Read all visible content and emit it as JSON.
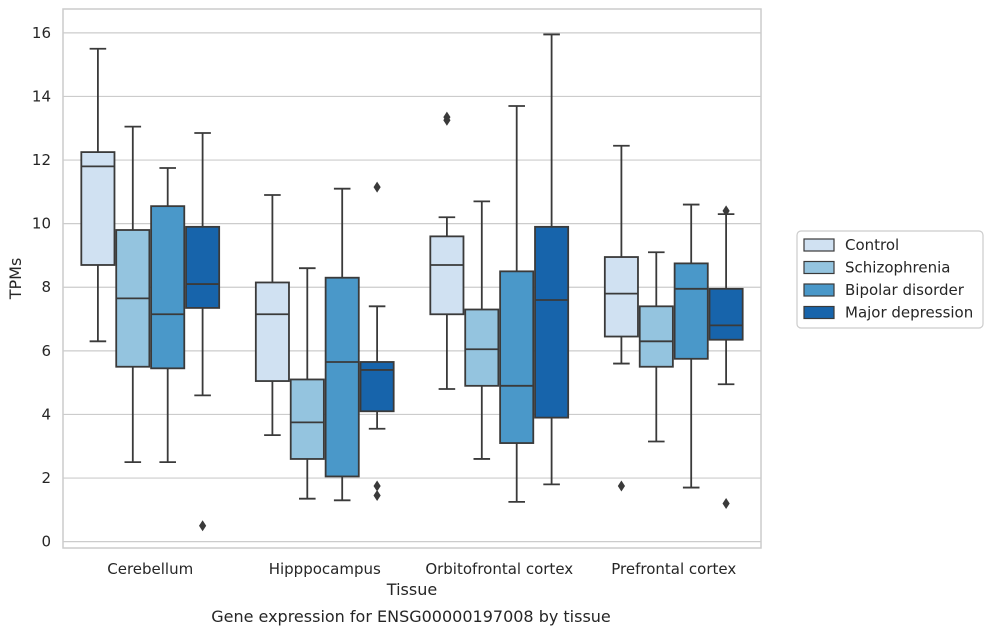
{
  "chart_data": {
    "type": "box",
    "title": "",
    "caption": "Gene expression for ENSG00000197008 by tissue",
    "xlabel": "Tissue",
    "ylabel": "TPMs",
    "ylim": [
      -0.2,
      16.75
    ],
    "yticks": [
      0,
      2,
      4,
      6,
      8,
      10,
      12,
      14,
      16
    ],
    "grid": "horizontal",
    "legend_position": "right",
    "categories": [
      "Cerebellum",
      "Hipppocampus",
      "Orbitofrontal cortex",
      "Prefrontal cortex"
    ],
    "series": [
      {
        "name": "Control",
        "color": "#d0e1f2",
        "boxes": [
          {
            "whisker_low": 6.3,
            "q1": 8.7,
            "median": 11.8,
            "q3": 12.25,
            "whisker_high": 15.5,
            "outliers": []
          },
          {
            "whisker_low": 3.35,
            "q1": 5.05,
            "median": 7.15,
            "q3": 8.15,
            "whisker_high": 10.9,
            "outliers": []
          },
          {
            "whisker_low": 4.8,
            "q1": 7.15,
            "median": 8.7,
            "q3": 9.6,
            "whisker_high": 10.2,
            "outliers": [
              13.25,
              13.35
            ]
          },
          {
            "whisker_low": 5.6,
            "q1": 6.45,
            "median": 7.8,
            "q3": 8.95,
            "whisker_high": 12.45,
            "outliers": [
              1.75
            ]
          }
        ]
      },
      {
        "name": "Schizophrenia",
        "color": "#94c4df",
        "boxes": [
          {
            "whisker_low": 2.5,
            "q1": 5.5,
            "median": 7.65,
            "q3": 9.8,
            "whisker_high": 13.05,
            "outliers": []
          },
          {
            "whisker_low": 1.35,
            "q1": 2.6,
            "median": 3.75,
            "q3": 5.1,
            "whisker_high": 8.6,
            "outliers": []
          },
          {
            "whisker_low": 2.6,
            "q1": 4.9,
            "median": 6.05,
            "q3": 7.3,
            "whisker_high": 10.7,
            "outliers": []
          },
          {
            "whisker_low": 3.15,
            "q1": 5.5,
            "median": 6.3,
            "q3": 7.4,
            "whisker_high": 9.1,
            "outliers": []
          }
        ]
      },
      {
        "name": "Bipolar disorder",
        "color": "#4a98c9",
        "boxes": [
          {
            "whisker_low": 2.5,
            "q1": 5.45,
            "median": 7.15,
            "q3": 10.55,
            "whisker_high": 11.75,
            "outliers": []
          },
          {
            "whisker_low": 1.3,
            "q1": 2.05,
            "median": 5.65,
            "q3": 8.3,
            "whisker_high": 11.1,
            "outliers": []
          },
          {
            "whisker_low": 1.25,
            "q1": 3.1,
            "median": 4.9,
            "q3": 8.5,
            "whisker_high": 13.7,
            "outliers": []
          },
          {
            "whisker_low": 1.7,
            "q1": 5.75,
            "median": 7.95,
            "q3": 8.75,
            "whisker_high": 10.6,
            "outliers": []
          }
        ]
      },
      {
        "name": "Major depression",
        "color": "#1764ab",
        "boxes": [
          {
            "whisker_low": 4.6,
            "q1": 7.35,
            "median": 8.1,
            "q3": 9.9,
            "whisker_high": 12.85,
            "outliers": [
              0.5
            ]
          },
          {
            "whisker_low": 3.55,
            "q1": 4.1,
            "median": 5.4,
            "q3": 5.65,
            "whisker_high": 7.4,
            "outliers": [
              11.15,
              1.75,
              1.45
            ]
          },
          {
            "whisker_low": 1.8,
            "q1": 3.9,
            "median": 7.6,
            "q3": 9.9,
            "whisker_high": 15.95,
            "outliers": []
          },
          {
            "whisker_low": 4.95,
            "q1": 6.35,
            "median": 6.8,
            "q3": 7.95,
            "whisker_high": 10.3,
            "outliers": [
              10.4,
              1.2
            ]
          }
        ]
      }
    ]
  }
}
